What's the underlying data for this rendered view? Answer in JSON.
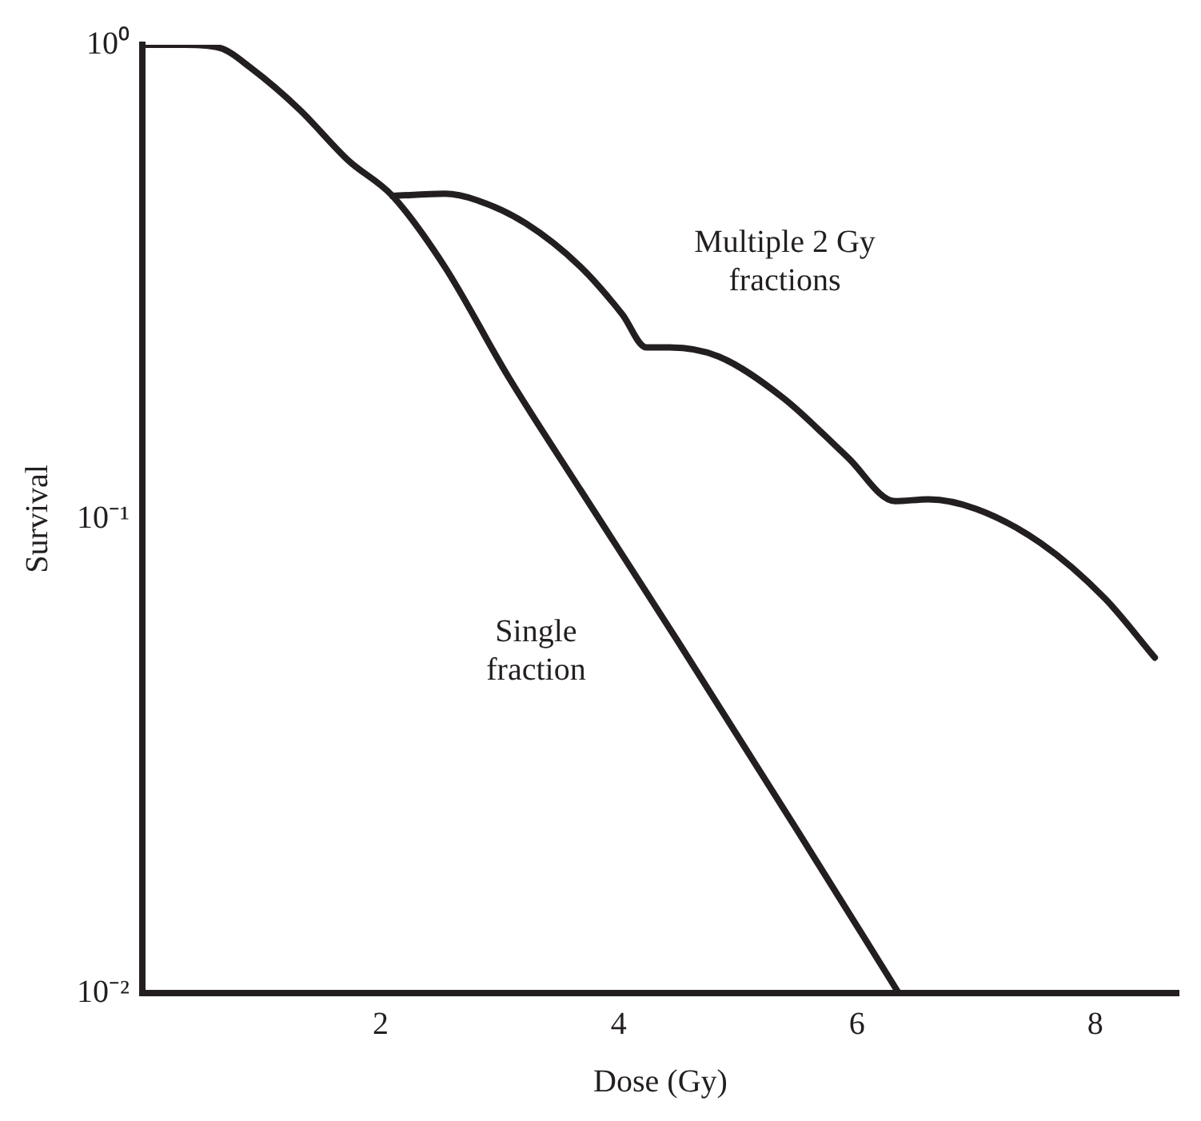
{
  "chart_data": {
    "type": "line",
    "xlabel": "Dose (Gy)",
    "ylabel": "Survival",
    "log": "y",
    "grid": false,
    "legend": false,
    "marker": "none",
    "line_style": "solid",
    "xlim": [
      0,
      8.7
    ],
    "xticks": [
      2,
      4,
      6,
      8
    ],
    "ylim": [
      0.01,
      1
    ],
    "yticks": [
      {
        "value": 1,
        "label": "10⁰"
      },
      {
        "value": 0.1,
        "label": "10⁻¹"
      },
      {
        "value": 0.01,
        "label": "10⁻²"
      }
    ],
    "series": [
      {
        "color": "#231f20",
        "x": [
          0,
          0.36,
          0.65,
          0.92,
          1.32,
          1.73,
          2.1,
          2.54,
          3.07,
          3.68,
          4.5,
          5.5,
          6.35
        ],
        "values": [
          1,
          1,
          0.985,
          0.89,
          0.73,
          0.57,
          0.48,
          0.34,
          0.2,
          0.115,
          0.055,
          0.022,
          0.01
        ]
      },
      {
        "color": "#231f20",
        "x": [
          2.1,
          2.54,
          2.81,
          3.22,
          3.68,
          4.03,
          4.23,
          4.43,
          4.84,
          5.38,
          5.92,
          6.32,
          6.6,
          7.0,
          7.54,
          8.08,
          8.5
        ],
        "values": [
          0.48,
          0.485,
          0.47,
          0.42,
          0.34,
          0.27,
          0.23,
          0.23,
          0.22,
          0.18,
          0.135,
          0.109,
          0.11,
          0.105,
          0.089,
          0.068,
          0.051
        ]
      }
    ],
    "annotations": [
      "Multiple 2 Gy\nfractions",
      "Single\nfraction"
    ]
  }
}
